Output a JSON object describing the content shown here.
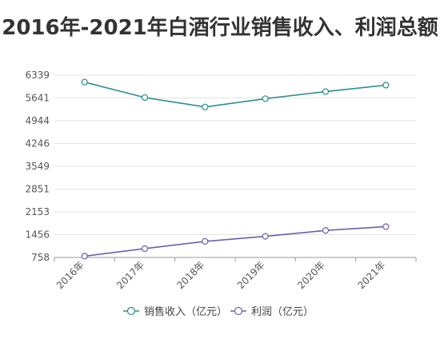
{
  "chart_data": {
    "type": "line",
    "title": "2016年-2021年白酒行业销售收入、利润总额",
    "categories": [
      "2016年",
      "2017年",
      "2018年",
      "2019年",
      "2020年",
      "2021年"
    ],
    "yticks": [
      758,
      1456,
      2153,
      2851,
      3549,
      4246,
      4944,
      5641,
      6339
    ],
    "ylim": [
      758,
      6339
    ],
    "grid": true,
    "legend_position": "bottom",
    "series": [
      {
        "name": "销售收入（亿元）",
        "color": "#2a8c8c",
        "values": [
          6126,
          5654,
          5364,
          5618,
          5836,
          6033
        ]
      },
      {
        "name": "利润（亿元）",
        "color": "#6a5fb0",
        "values": [
          797,
          1028,
          1250,
          1404,
          1585,
          1701
        ]
      }
    ]
  }
}
